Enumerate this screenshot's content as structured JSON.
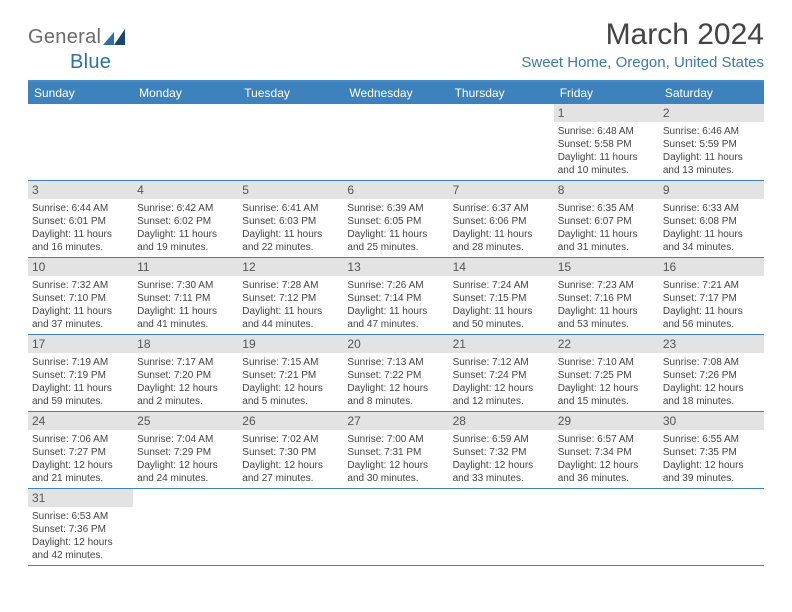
{
  "brand": {
    "part1": "General",
    "part2": "Blue"
  },
  "title": {
    "month": "March 2024",
    "location": "Sweet Home, Oregon, United States"
  },
  "colors": {
    "header_bg": "#3d82bd",
    "header_text": "#ffffff",
    "row_border": "#3d82bd",
    "daynum_bg": "#e3e3e3",
    "text": "#444444",
    "location_text": "#3e79ad"
  },
  "dayHeaders": [
    "Sunday",
    "Monday",
    "Tuesday",
    "Wednesday",
    "Thursday",
    "Friday",
    "Saturday"
  ],
  "startWeekday": 5,
  "daysInMonth": 31,
  "days": {
    "1": {
      "sunrise": "6:48 AM",
      "sunset": "5:58 PM",
      "daylight": "11 hours and 10 minutes."
    },
    "2": {
      "sunrise": "6:46 AM",
      "sunset": "5:59 PM",
      "daylight": "11 hours and 13 minutes."
    },
    "3": {
      "sunrise": "6:44 AM",
      "sunset": "6:01 PM",
      "daylight": "11 hours and 16 minutes."
    },
    "4": {
      "sunrise": "6:42 AM",
      "sunset": "6:02 PM",
      "daylight": "11 hours and 19 minutes."
    },
    "5": {
      "sunrise": "6:41 AM",
      "sunset": "6:03 PM",
      "daylight": "11 hours and 22 minutes."
    },
    "6": {
      "sunrise": "6:39 AM",
      "sunset": "6:05 PM",
      "daylight": "11 hours and 25 minutes."
    },
    "7": {
      "sunrise": "6:37 AM",
      "sunset": "6:06 PM",
      "daylight": "11 hours and 28 minutes."
    },
    "8": {
      "sunrise": "6:35 AM",
      "sunset": "6:07 PM",
      "daylight": "11 hours and 31 minutes."
    },
    "9": {
      "sunrise": "6:33 AM",
      "sunset": "6:08 PM",
      "daylight": "11 hours and 34 minutes."
    },
    "10": {
      "sunrise": "7:32 AM",
      "sunset": "7:10 PM",
      "daylight": "11 hours and 37 minutes."
    },
    "11": {
      "sunrise": "7:30 AM",
      "sunset": "7:11 PM",
      "daylight": "11 hours and 41 minutes."
    },
    "12": {
      "sunrise": "7:28 AM",
      "sunset": "7:12 PM",
      "daylight": "11 hours and 44 minutes."
    },
    "13": {
      "sunrise": "7:26 AM",
      "sunset": "7:14 PM",
      "daylight": "11 hours and 47 minutes."
    },
    "14": {
      "sunrise": "7:24 AM",
      "sunset": "7:15 PM",
      "daylight": "11 hours and 50 minutes."
    },
    "15": {
      "sunrise": "7:23 AM",
      "sunset": "7:16 PM",
      "daylight": "11 hours and 53 minutes."
    },
    "16": {
      "sunrise": "7:21 AM",
      "sunset": "7:17 PM",
      "daylight": "11 hours and 56 minutes."
    },
    "17": {
      "sunrise": "7:19 AM",
      "sunset": "7:19 PM",
      "daylight": "11 hours and 59 minutes."
    },
    "18": {
      "sunrise": "7:17 AM",
      "sunset": "7:20 PM",
      "daylight": "12 hours and 2 minutes."
    },
    "19": {
      "sunrise": "7:15 AM",
      "sunset": "7:21 PM",
      "daylight": "12 hours and 5 minutes."
    },
    "20": {
      "sunrise": "7:13 AM",
      "sunset": "7:22 PM",
      "daylight": "12 hours and 8 minutes."
    },
    "21": {
      "sunrise": "7:12 AM",
      "sunset": "7:24 PM",
      "daylight": "12 hours and 12 minutes."
    },
    "22": {
      "sunrise": "7:10 AM",
      "sunset": "7:25 PM",
      "daylight": "12 hours and 15 minutes."
    },
    "23": {
      "sunrise": "7:08 AM",
      "sunset": "7:26 PM",
      "daylight": "12 hours and 18 minutes."
    },
    "24": {
      "sunrise": "7:06 AM",
      "sunset": "7:27 PM",
      "daylight": "12 hours and 21 minutes."
    },
    "25": {
      "sunrise": "7:04 AM",
      "sunset": "7:29 PM",
      "daylight": "12 hours and 24 minutes."
    },
    "26": {
      "sunrise": "7:02 AM",
      "sunset": "7:30 PM",
      "daylight": "12 hours and 27 minutes."
    },
    "27": {
      "sunrise": "7:00 AM",
      "sunset": "7:31 PM",
      "daylight": "12 hours and 30 minutes."
    },
    "28": {
      "sunrise": "6:59 AM",
      "sunset": "7:32 PM",
      "daylight": "12 hours and 33 minutes."
    },
    "29": {
      "sunrise": "6:57 AM",
      "sunset": "7:34 PM",
      "daylight": "12 hours and 36 minutes."
    },
    "30": {
      "sunrise": "6:55 AM",
      "sunset": "7:35 PM",
      "daylight": "12 hours and 39 minutes."
    },
    "31": {
      "sunrise": "6:53 AM",
      "sunset": "7:36 PM",
      "daylight": "12 hours and 42 minutes."
    }
  },
  "labels": {
    "sunrise": "Sunrise:",
    "sunset": "Sunset:",
    "daylight": "Daylight:"
  }
}
